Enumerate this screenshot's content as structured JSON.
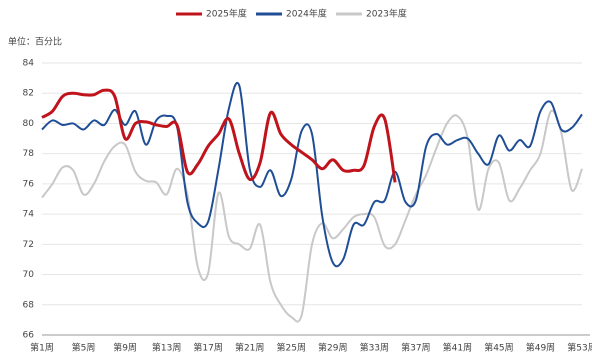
{
  "chart_data": {
    "type": "line",
    "unit_label": "单位：百分比",
    "categories": [
      "第1周",
      null,
      null,
      null,
      "第5周",
      null,
      null,
      null,
      "第9周",
      null,
      null,
      null,
      "第13周",
      null,
      null,
      null,
      "第17周",
      null,
      null,
      null,
      "第21周",
      null,
      null,
      null,
      "第25周",
      null,
      null,
      null,
      "第29周",
      null,
      null,
      null,
      "第33周",
      null,
      null,
      null,
      "第37周",
      null,
      null,
      null,
      "第41周",
      null,
      null,
      null,
      "第45周",
      null,
      null,
      null,
      "第49周",
      null,
      null,
      null,
      "第53周"
    ],
    "series": [
      {
        "name": "2025年度",
        "color": "#c0141c",
        "width": 3,
        "values": [
          80.4,
          80.8,
          81.8,
          82.0,
          81.9,
          81.9,
          82.2,
          81.8,
          79.0,
          80.0,
          80.1,
          79.9,
          79.8,
          79.9,
          76.8,
          77.3,
          78.5,
          79.3,
          80.3,
          78.0,
          76.3,
          77.4,
          80.7,
          79.3,
          78.6,
          78.1,
          77.6,
          77.0,
          77.6,
          76.9,
          76.9,
          77.2,
          79.8,
          80.3,
          76.1,
          null,
          null,
          null,
          null,
          null,
          null,
          null,
          null,
          null,
          null,
          null,
          null,
          null,
          null,
          null,
          null,
          null,
          null
        ]
      },
      {
        "name": "2024年度",
        "color": "#1f4e96",
        "width": 2,
        "values": [
          79.6,
          80.2,
          79.9,
          80.0,
          79.6,
          80.2,
          79.9,
          80.9,
          79.9,
          80.8,
          78.6,
          80.2,
          80.5,
          79.8,
          74.8,
          73.4,
          73.5,
          77.0,
          81.0,
          82.5,
          77.0,
          75.8,
          76.9,
          75.2,
          76.3,
          79.5,
          79.3,
          73.8,
          70.8,
          71.0,
          73.3,
          73.3,
          74.8,
          74.9,
          76.8,
          74.8,
          74.9,
          78.5,
          79.3,
          78.6,
          78.9,
          79.0,
          78.0,
          77.3,
          79.2,
          78.2,
          78.9,
          78.5,
          80.8,
          81.4,
          79.6,
          79.7,
          80.6
        ]
      },
      {
        "name": "2023年度",
        "color": "#c8c8c8",
        "width": 2,
        "values": [
          75.1,
          76.0,
          77.1,
          76.9,
          75.3,
          76.0,
          77.5,
          78.5,
          78.6,
          76.8,
          76.2,
          76.1,
          75.3,
          77.0,
          75.3,
          70.5,
          70.1,
          75.4,
          72.5,
          72.0,
          71.7,
          73.3,
          69.5,
          68.0,
          67.2,
          67.3,
          72.0,
          73.4,
          72.4,
          73.0,
          73.8,
          74.0,
          73.8,
          71.9,
          72.0,
          73.6,
          75.3,
          76.6,
          78.4,
          80.0,
          80.5,
          79.0,
          74.3,
          77.0,
          77.4,
          74.9,
          75.7,
          76.9,
          78.0,
          80.8,
          79.4,
          75.6,
          77.0
        ]
      }
    ],
    "ylim": [
      66,
      84
    ],
    "yticks": [
      66,
      68,
      70,
      72,
      74,
      76,
      78,
      80,
      82,
      84
    ],
    "grid": true
  }
}
